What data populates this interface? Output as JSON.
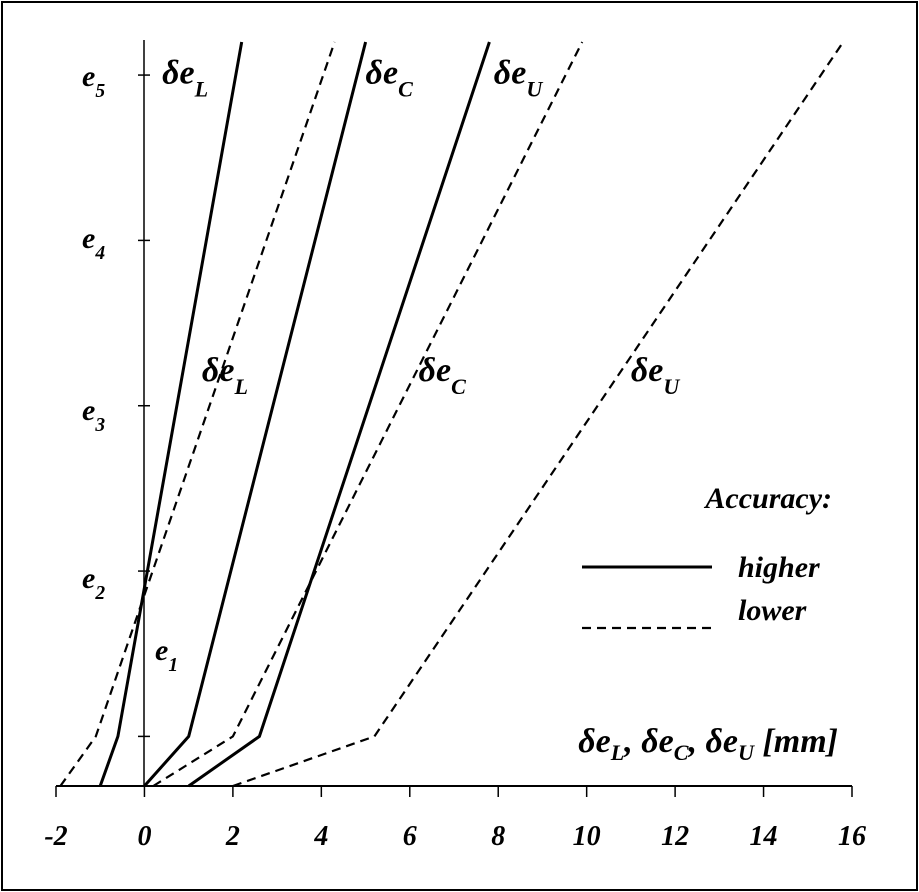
{
  "chart_data": {
    "type": "line",
    "xlabel": "δe_L, δe_C, δe_U [mm]",
    "xlabel_parts": [
      "δe",
      "L",
      ", δe",
      "C",
      ", δe",
      "U",
      " [mm]"
    ],
    "xlim": [
      -2,
      16
    ],
    "x_ticks": [
      "-2",
      "0",
      "2",
      "4",
      "6",
      "8",
      "10",
      "12",
      "14",
      "16"
    ],
    "y_categories": [
      "e1",
      "e2",
      "e3",
      "e4",
      "e5"
    ],
    "y_ticks": [
      {
        "base": "e",
        "sub": "1"
      },
      {
        "base": "e",
        "sub": "2"
      },
      {
        "base": "e",
        "sub": "3"
      },
      {
        "base": "e",
        "sub": "4"
      },
      {
        "base": "e",
        "sub": "5"
      }
    ],
    "ylim": [
      0.7,
      5.2
    ],
    "grid": false,
    "legend_placement": "right",
    "legend": {
      "title": "Accuracy:",
      "entries": [
        {
          "label": "higher",
          "style": "solid"
        },
        {
          "label": "lower",
          "style": "dashed"
        }
      ]
    },
    "series": [
      {
        "label_base": "δe",
        "label_sub": "L",
        "accuracy": "higher",
        "style": "solid",
        "x": [
          -1.0,
          -0.6,
          2.2
        ],
        "y": [
          0.7,
          1.0,
          5.2
        ]
      },
      {
        "label_base": "δe",
        "label_sub": "C",
        "accuracy": "higher",
        "style": "solid",
        "x": [
          0.0,
          1.0,
          5.0
        ],
        "y": [
          0.7,
          1.0,
          5.2
        ]
      },
      {
        "label_base": "δe",
        "label_sub": "U",
        "accuracy": "higher",
        "style": "solid",
        "x": [
          1.0,
          2.6,
          7.8
        ],
        "y": [
          0.7,
          1.0,
          5.2
        ]
      },
      {
        "label_base": "δe",
        "label_sub": "L",
        "accuracy": "lower",
        "style": "dashed",
        "x": [
          -1.9,
          -1.1,
          4.3
        ],
        "y": [
          0.7,
          1.0,
          5.2
        ]
      },
      {
        "label_base": "δe",
        "label_sub": "C",
        "accuracy": "lower",
        "style": "dashed",
        "x": [
          0.2,
          2.0,
          9.9
        ],
        "y": [
          0.7,
          1.0,
          5.2
        ]
      },
      {
        "label_base": "δe",
        "label_sub": "U",
        "accuracy": "lower",
        "style": "dashed",
        "x": [
          2.0,
          5.2,
          15.8
        ],
        "y": [
          0.7,
          1.0,
          5.2
        ]
      }
    ],
    "annotations": [
      {
        "series_index": 0,
        "x": 0.4,
        "y": 4.95
      },
      {
        "series_index": 3,
        "x": 1.3,
        "y": 3.15
      },
      {
        "series_index": 1,
        "x": 5.0,
        "y": 4.95
      },
      {
        "series_index": 4,
        "x": 6.2,
        "y": 3.15
      },
      {
        "series_index": 2,
        "x": 7.9,
        "y": 4.95
      },
      {
        "series_index": 5,
        "x": 11.0,
        "y": 3.15
      }
    ]
  }
}
